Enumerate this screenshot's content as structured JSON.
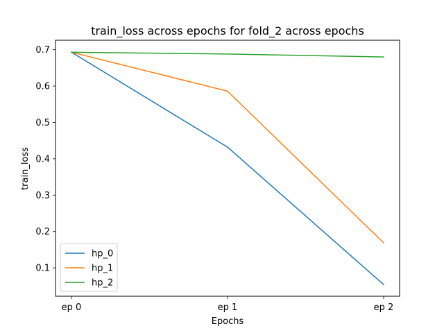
{
  "chart_data": {
    "type": "line",
    "title": "train_loss across epochs for fold_2 across epochs",
    "xlabel": "Epochs",
    "ylabel": "train_loss",
    "categories": [
      "ep 0",
      "ep 1",
      "ep 2"
    ],
    "yticks": [
      0.1,
      0.2,
      0.3,
      0.4,
      0.5,
      0.6,
      0.7
    ],
    "ylim": [
      0.022,
      0.726
    ],
    "grid": false,
    "legend_position": "lower-left",
    "series": [
      {
        "name": "hp_0",
        "color": "#1f77b4",
        "values": [
          0.693,
          0.432,
          0.054
        ]
      },
      {
        "name": "hp_1",
        "color": "#ff7f0e",
        "values": [
          0.693,
          0.586,
          0.169
        ]
      },
      {
        "name": "hp_2",
        "color": "#2ca02c",
        "values": [
          0.693,
          0.688,
          0.68
        ]
      }
    ]
  }
}
